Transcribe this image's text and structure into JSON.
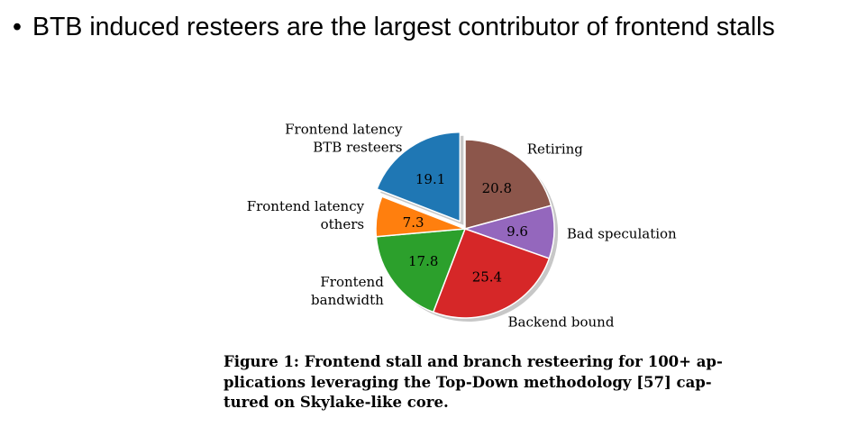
{
  "slide": {
    "bullet_text": "BTB induced resteers are the largest contributor of frontend stalls"
  },
  "caption": {
    "lines": [
      "Figure 1: Frontend stall and branch resteering for 100+ ap-",
      "plications leveraging the Top-Down methodology [57] cap-",
      "tured on Skylake-like core."
    ]
  },
  "chart_data": {
    "type": "pie",
    "title": "",
    "slices": [
      {
        "label": [
          "Retiring"
        ],
        "value": 20.8,
        "value_label": "20.8",
        "color": "#8c564b"
      },
      {
        "label": [
          "Bad speculation"
        ],
        "value": 9.6,
        "value_label": "9.6",
        "color": "#9467bd"
      },
      {
        "label": [
          "Backend bound"
        ],
        "value": 25.4,
        "value_label": "25.4",
        "color": "#d62728"
      },
      {
        "label": [
          "Frontend",
          "bandwidth"
        ],
        "value": 17.8,
        "value_label": "17.8",
        "color": "#2ca02c"
      },
      {
        "label": [
          "Frontend latency",
          "others"
        ],
        "value": 7.3,
        "value_label": "7.3",
        "color": "#ff7f0e"
      },
      {
        "label": [
          "Frontend latency",
          "BTB resteers"
        ],
        "value": 19.1,
        "value_label": "19.1",
        "color": "#1f77b4",
        "exploded": true
      }
    ],
    "start": "12 o'clock",
    "direction": "clockwise",
    "shadow": true
  }
}
